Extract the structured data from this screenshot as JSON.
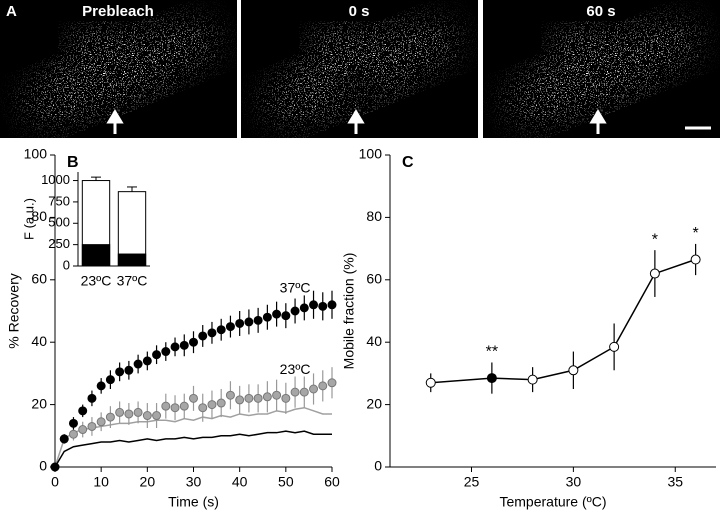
{
  "panel_a": {
    "label": "A",
    "titles": [
      "Prebleach",
      "0 s",
      "60 s"
    ]
  },
  "chart_data": [
    {
      "type": "scatter",
      "label": "B",
      "xlabel": "Time (s)",
      "ylabel": "% Recovery",
      "x": [
        0,
        2,
        4,
        6,
        8,
        10,
        12,
        14,
        16,
        18,
        20,
        22,
        24,
        26,
        28,
        30,
        32,
        34,
        36,
        38,
        40,
        42,
        44,
        46,
        48,
        50,
        52,
        54,
        56,
        58,
        60
      ],
      "xlim": [
        0,
        60
      ],
      "xticks": [
        0,
        10,
        20,
        30,
        40,
        50,
        60
      ],
      "ylim": [
        0,
        100
      ],
      "yticks": [
        0,
        20,
        40,
        60,
        80,
        100
      ],
      "series": [
        {
          "name": "37ºC",
          "color": "#000000",
          "mode": "points",
          "values": [
            0,
            9,
            14,
            18,
            22,
            26,
            28,
            30.5,
            31,
            33,
            34,
            36,
            37,
            38.5,
            39,
            40,
            42,
            43,
            44,
            45,
            46,
            46.5,
            47,
            48,
            49,
            48.5,
            50,
            51,
            52,
            51.5,
            52
          ],
          "errors": [
            0,
            1.5,
            2,
            2,
            2.5,
            2.5,
            3,
            3,
            3,
            3,
            3,
            3,
            3,
            3,
            3.5,
            3.5,
            3.5,
            3.5,
            3.5,
            3.5,
            4,
            4,
            4,
            4,
            4,
            4,
            4,
            4,
            4.5,
            4.5,
            4.5
          ]
        },
        {
          "name": "23ºC",
          "color": "#a6a6a6",
          "mode": "points",
          "values": [
            0,
            9,
            10.5,
            12,
            13,
            14.5,
            16,
            17.5,
            17,
            17.5,
            16.5,
            16.5,
            19.5,
            19,
            19.5,
            22,
            19,
            20,
            20.5,
            23,
            21.5,
            22,
            22,
            22.5,
            23,
            22,
            24,
            24,
            25,
            26,
            27
          ],
          "errors": [
            0,
            1.5,
            2,
            2.5,
            3,
            3,
            3.5,
            3.5,
            3.5,
            3.5,
            4,
            4,
            4,
            4,
            4,
            4,
            4.5,
            4.5,
            4.5,
            4.5,
            4.5,
            4.5,
            4.5,
            5,
            5,
            5,
            5,
            5,
            5,
            5,
            5
          ]
        },
        {
          "color": "#a0a0a0",
          "mode": "line",
          "values": [
            0,
            9,
            11,
            12,
            12.5,
            13,
            13.5,
            14,
            14,
            14.5,
            14.5,
            15,
            15,
            14.5,
            15.5,
            15,
            16,
            15.5,
            16.5,
            16,
            17,
            16.5,
            17,
            17,
            18,
            17.5,
            18.5,
            19,
            18,
            17,
            17
          ]
        },
        {
          "color": "#000000",
          "mode": "line",
          "values": [
            0,
            5,
            6.5,
            7,
            7.5,
            8,
            8,
            8.5,
            8,
            8.5,
            9,
            8.5,
            9,
            9,
            9.5,
            9,
            9.5,
            9.5,
            10,
            10,
            10.5,
            10,
            10.5,
            11,
            11,
            11.5,
            11,
            11.5,
            10.5,
            10.5,
            10.5
          ]
        }
      ]
    },
    {
      "type": "bar",
      "ylabel": "F (a.u.)",
      "categories": [
        "23ºC",
        "37ºC"
      ],
      "ylim": [
        0,
        1100
      ],
      "yticks": [
        0,
        250,
        500,
        750,
        1000
      ],
      "series": [
        {
          "color": "#ffffff",
          "values": [
            1000,
            870
          ],
          "errors": [
            40,
            55
          ]
        },
        {
          "color": "#000000",
          "values": [
            250,
            140
          ]
        }
      ]
    },
    {
      "type": "line",
      "label": "C",
      "xlabel": "Temperature (ºC)",
      "ylabel": "Mobile fraction (%)",
      "x": [
        23,
        26,
        28,
        30,
        32,
        34,
        36
      ],
      "xlim": [
        21,
        37
      ],
      "xticks": [
        25,
        30,
        35
      ],
      "ylim": [
        0,
        100
      ],
      "yticks": [
        0,
        20,
        40,
        60,
        80,
        100
      ],
      "series": [
        {
          "color": "#000000",
          "values": [
            27,
            28.5,
            28,
            31,
            38.5,
            62,
            66.5
          ],
          "errors": [
            3,
            5,
            4,
            6,
            7.5,
            7.5,
            5
          ],
          "point_colors": [
            "#ffffff",
            "#000000",
            "#ffffff",
            "#ffffff",
            "#ffffff",
            "#ffffff",
            "#ffffff"
          ]
        }
      ],
      "annotations": [
        {
          "text": "**",
          "x": 26
        },
        {
          "text": "*",
          "x": 34
        },
        {
          "text": "*",
          "x": 36
        }
      ]
    }
  ]
}
